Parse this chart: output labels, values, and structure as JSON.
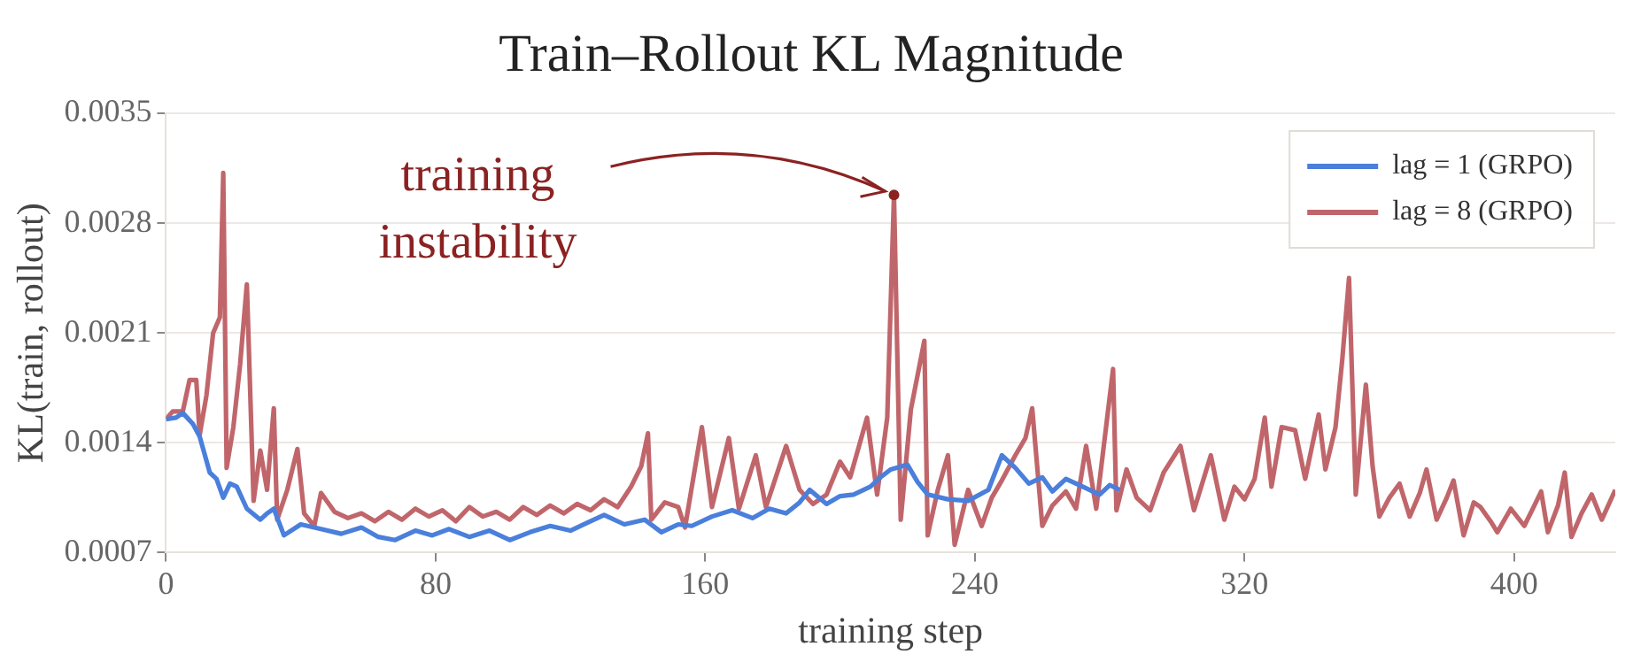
{
  "chart_data": {
    "type": "line",
    "title": "Train–Rollout KL Magnitude",
    "xlabel": "training step",
    "ylabel": "KL(train, rollout)",
    "xlim": [
      0,
      430
    ],
    "xticks": [
      0,
      80,
      160,
      240,
      320,
      400
    ],
    "ylim": [
      0.0007,
      0.0035
    ],
    "yticks": [
      0.0007,
      0.0014,
      0.0021,
      0.0028,
      0.0035
    ],
    "grid": "y",
    "legend": "top right",
    "marker": "none",
    "line_style": "solid",
    "annotations": [
      {
        "text": "training instability",
        "x": 216,
        "y": 0.00298
      }
    ],
    "series": [
      {
        "name": "lag = 1 (GRPO)",
        "color": "#4a7fdc",
        "x": [
          0,
          3,
          5,
          8,
          10,
          13,
          15,
          17,
          19,
          21,
          24,
          28,
          30,
          32,
          35,
          40,
          46,
          52,
          58,
          63,
          68,
          74,
          79,
          84,
          90,
          96,
          102,
          108,
          114,
          120,
          125,
          130,
          136,
          142,
          147,
          152,
          156,
          162,
          168,
          174,
          179,
          184,
          188,
          191,
          196,
          200,
          204,
          209,
          212,
          215,
          220,
          223,
          226,
          232,
          238,
          244,
          248,
          252,
          256,
          260,
          263,
          267,
          272,
          277,
          280,
          283
        ],
        "values": [
          0.00155,
          0.00156,
          0.00159,
          0.00152,
          0.00144,
          0.00121,
          0.00117,
          0.00105,
          0.00114,
          0.00112,
          0.00098,
          0.00091,
          0.00095,
          0.00098,
          0.00081,
          0.00088,
          0.00085,
          0.00082,
          0.00086,
          0.0008,
          0.00078,
          0.00084,
          0.00081,
          0.00085,
          0.0008,
          0.00084,
          0.00078,
          0.00083,
          0.00087,
          0.00084,
          0.00089,
          0.00094,
          0.00088,
          0.00091,
          0.00083,
          0.00088,
          0.00087,
          0.00093,
          0.00097,
          0.00092,
          0.00098,
          0.00095,
          0.00102,
          0.0011,
          0.00101,
          0.00106,
          0.00107,
          0.00112,
          0.00118,
          0.00123,
          0.00126,
          0.00115,
          0.00107,
          0.00104,
          0.00103,
          0.0011,
          0.00132,
          0.00124,
          0.00114,
          0.00118,
          0.00109,
          0.00117,
          0.00112,
          0.00107,
          0.00113,
          0.0011
        ]
      },
      {
        "name": "lag = 8 (GRPO)",
        "color": "#c0666b",
        "x": [
          0,
          2,
          5,
          7,
          9,
          10,
          12,
          14,
          16,
          17,
          18,
          20,
          22,
          24,
          26,
          28,
          30,
          32,
          33,
          36,
          39,
          41,
          44,
          46,
          50,
          54,
          58,
          62,
          66,
          70,
          74,
          78,
          82,
          86,
          90,
          94,
          98,
          102,
          106,
          110,
          114,
          118,
          122,
          126,
          130,
          134,
          138,
          141,
          143,
          144,
          148,
          152,
          154,
          159,
          162,
          167,
          170,
          175,
          178,
          184,
          188,
          192,
          196,
          200,
          203,
          208,
          211,
          214,
          216,
          218,
          221,
          225,
          226,
          229,
          232,
          234,
          238,
          242,
          245,
          248,
          252,
          255,
          257,
          260,
          263,
          267,
          270,
          273,
          276,
          281,
          282,
          285,
          288,
          292,
          296,
          301,
          305,
          310,
          314,
          317,
          320,
          323,
          326,
          328,
          331,
          335,
          338,
          342,
          344,
          347,
          349,
          351,
          353,
          356,
          358,
          360,
          363,
          366,
          369,
          372,
          374,
          377,
          380,
          382,
          385,
          388,
          390,
          393,
          395,
          399,
          403,
          406,
          408,
          410,
          413,
          415,
          417,
          420,
          423,
          426,
          430
        ],
        "values": [
          0.00155,
          0.0016,
          0.0016,
          0.0018,
          0.0018,
          0.00145,
          0.0017,
          0.0021,
          0.0022,
          0.00312,
          0.00124,
          0.0015,
          0.0019,
          0.00241,
          0.00103,
          0.00135,
          0.0011,
          0.00162,
          0.00091,
          0.0011,
          0.00136,
          0.00095,
          0.00087,
          0.00108,
          0.00096,
          0.00092,
          0.00095,
          0.0009,
          0.00096,
          0.00091,
          0.00098,
          0.00093,
          0.00097,
          0.0009,
          0.00099,
          0.00093,
          0.00096,
          0.00091,
          0.00099,
          0.00094,
          0.001,
          0.00095,
          0.00101,
          0.00097,
          0.00104,
          0.00099,
          0.00112,
          0.00125,
          0.00146,
          0.00091,
          0.00102,
          0.00099,
          0.00086,
          0.0015,
          0.00099,
          0.00143,
          0.00098,
          0.00132,
          0.00099,
          0.00138,
          0.0011,
          0.00101,
          0.00107,
          0.00128,
          0.00118,
          0.00156,
          0.00107,
          0.00156,
          0.00298,
          0.00091,
          0.00161,
          0.00205,
          0.00081,
          0.0011,
          0.00132,
          0.00075,
          0.0011,
          0.00087,
          0.00105,
          0.00116,
          0.00132,
          0.00143,
          0.00162,
          0.00087,
          0.001,
          0.00109,
          0.00098,
          0.00138,
          0.00098,
          0.00187,
          0.00097,
          0.00123,
          0.00105,
          0.00097,
          0.00121,
          0.00138,
          0.00097,
          0.00132,
          0.00091,
          0.00112,
          0.00104,
          0.00117,
          0.00156,
          0.00112,
          0.0015,
          0.00148,
          0.00117,
          0.00158,
          0.00123,
          0.0015,
          0.00193,
          0.00245,
          0.00107,
          0.00177,
          0.00125,
          0.00093,
          0.00105,
          0.00114,
          0.00093,
          0.00108,
          0.00123,
          0.00091,
          0.00105,
          0.00116,
          0.00081,
          0.00102,
          0.00099,
          0.0009,
          0.00083,
          0.00098,
          0.00087,
          0.001,
          0.00109,
          0.00083,
          0.001,
          0.00121,
          0.0008,
          0.00095,
          0.00107,
          0.00091,
          0.0011
        ]
      }
    ]
  }
}
